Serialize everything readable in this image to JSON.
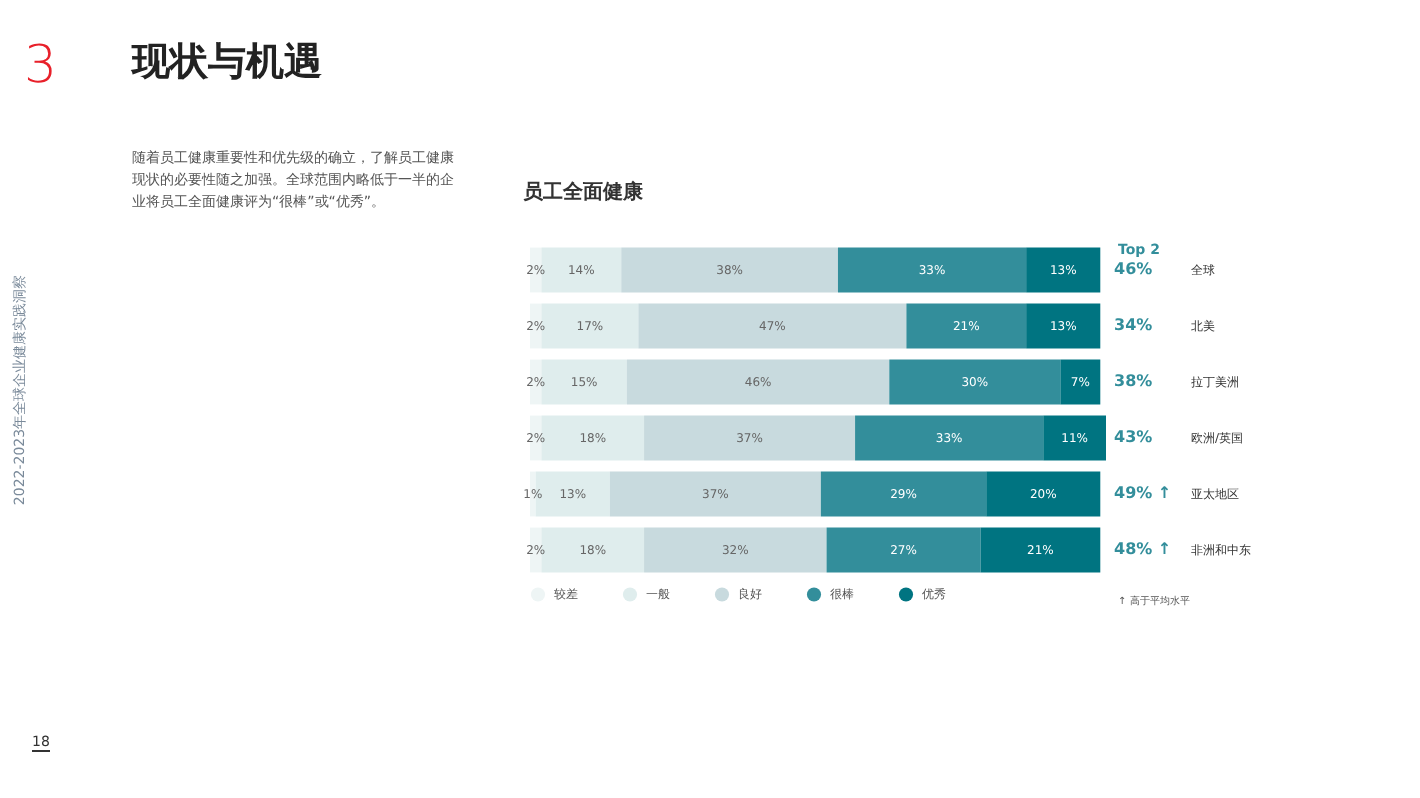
{
  "chart_data": {
    "type": "bar",
    "orientation": "horizontal",
    "stacked": true,
    "title": "员工全面健康",
    "categories": [
      "全球",
      "北美",
      "拉丁美洲",
      "欧洲/英国",
      "亚太地区",
      "非洲和中东"
    ],
    "series": [
      {
        "name": "较差",
        "color": "#eef5f5",
        "values": [
          2,
          2,
          2,
          2,
          1,
          2
        ],
        "value_labels": [
          "2%",
          "2%",
          "2%",
          "2%",
          "1%",
          "2%"
        ]
      },
      {
        "name": "一般",
        "color": "#dfeded",
        "values": [
          14,
          17,
          15,
          18,
          13,
          18
        ],
        "value_labels": [
          "14%",
          "17%",
          "15%",
          "18%",
          "13%",
          "18%"
        ]
      },
      {
        "name": "良好",
        "color": "#c8dade",
        "values": [
          38,
          47,
          46,
          37,
          37,
          32
        ],
        "value_labels": [
          "38%",
          "47%",
          "46%",
          "37%",
          "37%",
          "32%"
        ]
      },
      {
        "name": "很棒",
        "color": "#338e9b",
        "values": [
          33,
          21,
          30,
          33,
          29,
          27
        ],
        "value_labels": [
          "33%",
          "21%",
          "30%",
          "33%",
          "29%",
          "27%"
        ]
      },
      {
        "name": "优秀",
        "color": "#007481",
        "values": [
          13,
          13,
          7,
          11,
          20,
          21
        ],
        "value_labels": [
          "13%",
          "13%",
          "7%",
          "11%",
          "20%",
          "21%"
        ]
      }
    ],
    "tick_labels": "y",
    "legend": "bottom",
    "annotations": [
      "3",
      "现状与机遇",
      "随着员工健康重要性和优先级的确立，了解员工健康现状的必要性随之加强。全球范围内略低于一半的企业将员工全面健康评为“很棒”或“优秀”。",
      "2022-2023年全球企业健康实践洞察",
      "18",
      "Top 2",
      "↑ 高于平均水平",
      "46%",
      "34%",
      "38%",
      "43%",
      "49% ↑",
      "48% ↑"
    ]
  }
}
